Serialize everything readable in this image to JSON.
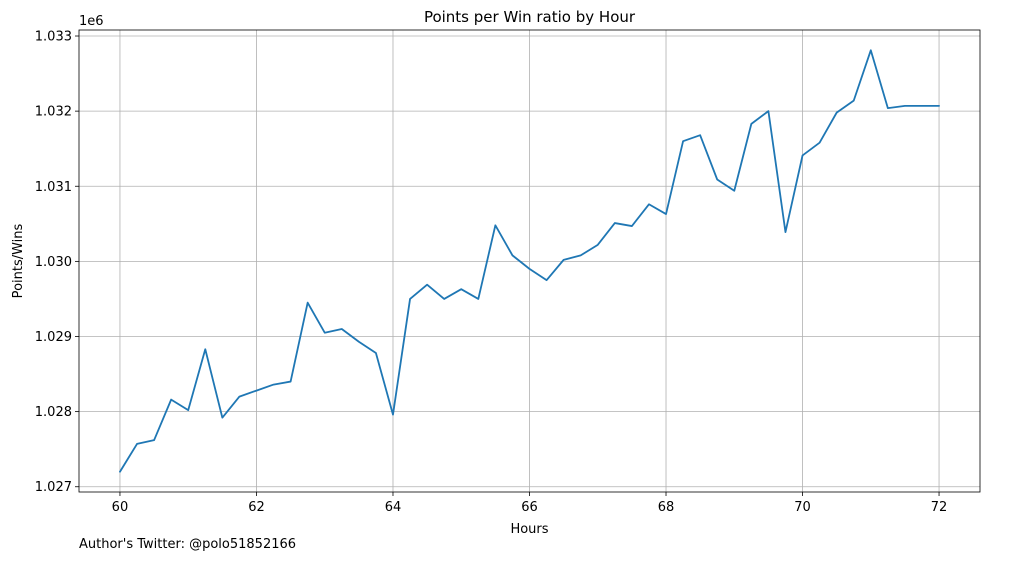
{
  "chart_data": {
    "type": "line",
    "title": "Points per Win ratio by Hour",
    "xlabel": "Hours",
    "ylabel": "Points/Wins",
    "y_offset_label": "1e6",
    "xlim": [
      59.4,
      72.6
    ],
    "ylim": [
      1.02693,
      1.03308
    ],
    "xticks": [
      60,
      62,
      64,
      66,
      68,
      70,
      72
    ],
    "xtick_labels": [
      "60",
      "62",
      "64",
      "66",
      "68",
      "70",
      "72"
    ],
    "yticks": [
      1.027,
      1.028,
      1.029,
      1.03,
      1.031,
      1.032,
      1.033
    ],
    "ytick_labels": [
      "1.027",
      "1.028",
      "1.029",
      "1.030",
      "1.031",
      "1.032",
      "1.033"
    ],
    "grid": true,
    "series": [
      {
        "color": "#1f77b4",
        "x": [
          60,
          60.25,
          60.5,
          60.75,
          61,
          61.25,
          61.5,
          61.75,
          62,
          62.25,
          62.5,
          62.75,
          63,
          63.25,
          63.5,
          63.75,
          64,
          64.25,
          64.5,
          64.75,
          65,
          65.25,
          65.5,
          65.75,
          66,
          66.25,
          66.5,
          66.75,
          67,
          67.25,
          67.5,
          67.75,
          68,
          68.25,
          68.5,
          68.75,
          69,
          69.25,
          69.5,
          69.75,
          70,
          70.25,
          70.5,
          70.75,
          71,
          71.25,
          71.5,
          71.75,
          72
        ],
        "y": [
          1.0272,
          1.02757,
          1.02762,
          1.02816,
          1.02802,
          1.02883,
          1.02792,
          1.0282,
          1.02828,
          1.02836,
          1.0284,
          1.02945,
          1.02905,
          1.0291,
          1.02893,
          1.02878,
          1.02796,
          1.0295,
          1.02969,
          1.0295,
          1.02963,
          1.0295,
          1.03048,
          1.03008,
          1.0299,
          1.02975,
          1.03002,
          1.03008,
          1.03022,
          1.03051,
          1.03047,
          1.03076,
          1.03063,
          1.0316,
          1.03168,
          1.03109,
          1.03094,
          1.03183,
          1.032,
          1.03039,
          1.03141,
          1.03158,
          1.03198,
          1.03214,
          1.03281,
          1.03204,
          1.03207,
          1.03207,
          1.03207
        ]
      }
    ]
  },
  "footer": {
    "author": "Author's Twitter: @polo51852166"
  }
}
